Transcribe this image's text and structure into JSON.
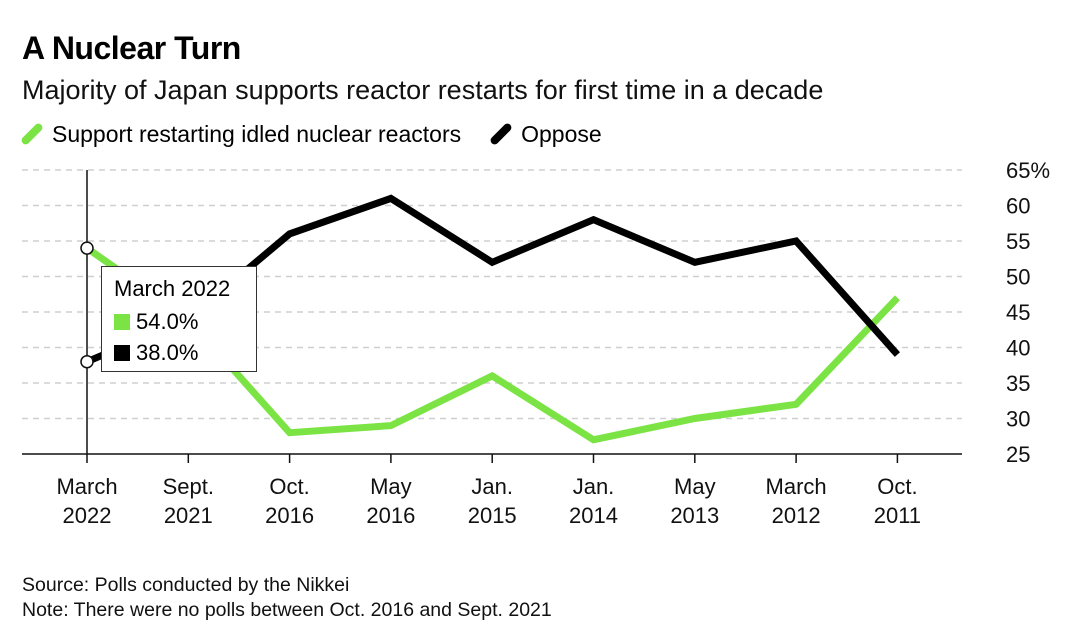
{
  "header": {
    "title": "A Nuclear Turn",
    "subtitle": "Majority of Japan supports reactor restarts for first time in a decade"
  },
  "legend": [
    {
      "label": "Support restarting idled nuclear reactors",
      "color": "#7be444"
    },
    {
      "label": "Oppose",
      "color": "#000000"
    }
  ],
  "tooltip": {
    "title": "March 2022",
    "rows": [
      {
        "value": "54.0%",
        "color": "#7be444"
      },
      {
        "value": "38.0%",
        "color": "#000000"
      }
    ]
  },
  "footer": {
    "source": "Source: Polls conducted by the Nikkei",
    "note": "Note: There were no polls between Oct. 2016 and Sept. 2021"
  },
  "chart_data": {
    "type": "line",
    "categories": [
      [
        "March",
        "2022"
      ],
      [
        "Sept.",
        "2021"
      ],
      [
        "Oct.",
        "2016"
      ],
      [
        "May",
        "2016"
      ],
      [
        "Jan.",
        "2015"
      ],
      [
        "Jan.",
        "2014"
      ],
      [
        "May",
        "2013"
      ],
      [
        "March",
        "2012"
      ],
      [
        "Oct.",
        "2011"
      ]
    ],
    "series": [
      {
        "name": "Support restarting idled nuclear reactors",
        "color": "#7be444",
        "values": [
          54,
          44,
          28,
          29,
          36,
          27,
          30,
          32,
          47
        ]
      },
      {
        "name": "Oppose",
        "color": "#000000",
        "values": [
          38,
          44,
          56,
          61,
          52,
          58,
          52,
          55,
          39
        ]
      }
    ],
    "y_ticks": [
      {
        "value": 65,
        "label": "65%"
      },
      {
        "value": 60,
        "label": "60"
      },
      {
        "value": 55,
        "label": "55"
      },
      {
        "value": 50,
        "label": "50"
      },
      {
        "value": 45,
        "label": "45"
      },
      {
        "value": 40,
        "label": "40"
      },
      {
        "value": 35,
        "label": "35"
      },
      {
        "value": 30,
        "label": "30"
      },
      {
        "value": 25,
        "label": "25"
      }
    ],
    "ylim": [
      25,
      65
    ],
    "grid": true,
    "y_axis_side": "right",
    "highlight_index": 0
  }
}
